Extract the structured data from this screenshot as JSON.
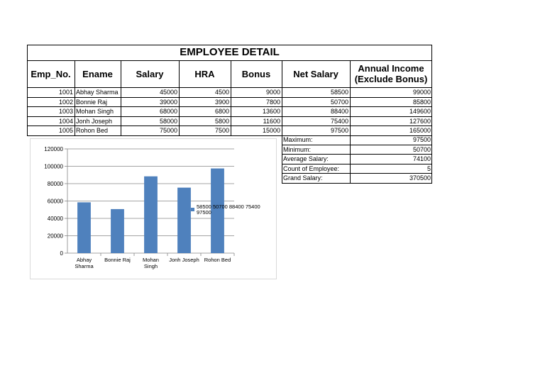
{
  "title": "EMPLOYEE DETAIL",
  "headers": [
    "Emp_No.",
    "Ename",
    "Salary",
    "HRA",
    "Bonus",
    "Net Salary",
    "Annual Income (Exclude Bonus)"
  ],
  "rows": [
    {
      "emp_no": "1001",
      "ename": "Abhay Sharma",
      "salary": "45000",
      "hra": "4500",
      "bonus": "9000",
      "net": "58500",
      "annual": "99000"
    },
    {
      "emp_no": "1002",
      "ename": "Bonnie Raj",
      "salary": "39000",
      "hra": "3900",
      "bonus": "7800",
      "net": "50700",
      "annual": "85800"
    },
    {
      "emp_no": "1003",
      "ename": "Mohan Singh",
      "salary": "68000",
      "hra": "6800",
      "bonus": "13600",
      "net": "88400",
      "annual": "149600"
    },
    {
      "emp_no": "1004",
      "ename": "Jonh Joseph",
      "salary": "58000",
      "hra": "5800",
      "bonus": "11600",
      "net": "75400",
      "annual": "127600"
    },
    {
      "emp_no": "1005",
      "ename": "Rohon Bed",
      "salary": "75000",
      "hra": "7500",
      "bonus": "15000",
      "net": "97500",
      "annual": "165000"
    }
  ],
  "summary": [
    {
      "label": "Maximum:",
      "value": "97500"
    },
    {
      "label": "Minimum:",
      "value": "50700"
    },
    {
      "label": "Average Salary:",
      "value": "74100"
    },
    {
      "label": "Count of Employee:",
      "value": "5"
    },
    {
      "label": "Grand Salary:",
      "value": "370500"
    }
  ],
  "chart_data": {
    "type": "bar",
    "categories": [
      "Abhay Sharma",
      "Bonnie Raj",
      "Mohan Singh",
      "Jonh Joseph",
      "Rohon Bed"
    ],
    "category_lines": [
      [
        "Abhay",
        "Sharma"
      ],
      [
        "Bonnie Raj"
      ],
      [
        "Mohan",
        "Singh"
      ],
      [
        "Jonh Joseph"
      ],
      [
        "Rohon Bed"
      ]
    ],
    "series": [
      {
        "name": "58500 50700 88400 75400 97500",
        "values": [
          58500,
          50700,
          88400,
          75400,
          97500
        ]
      }
    ],
    "legend_lines": [
      "58500 50700 88400 75400",
      "97500"
    ],
    "yticks": [
      "0",
      "20000",
      "40000",
      "60000",
      "80000",
      "100000",
      "120000"
    ],
    "ylim": [
      0,
      120000
    ],
    "grid": true,
    "legend": "right",
    "title": "",
    "xlabel": "",
    "ylabel": "",
    "bar_color": "#4f81bd"
  }
}
